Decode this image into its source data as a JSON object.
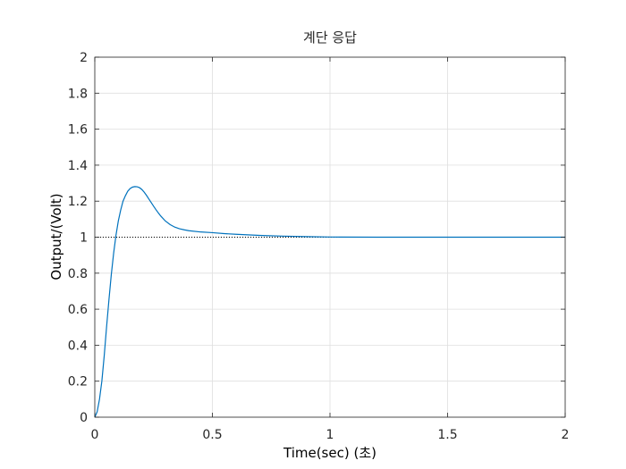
{
  "chart_data": {
    "type": "line",
    "title": "계단 응답",
    "xlabel": "Time(sec) (초)",
    "ylabel": "Output/(Volt)",
    "xlim": [
      0,
      2
    ],
    "ylim": [
      0,
      2
    ],
    "grid": true,
    "x_ticks": [
      "0",
      "0.5",
      "1",
      "1.5",
      "2"
    ],
    "y_ticks": [
      "0",
      "0.2",
      "0.4",
      "0.6",
      "0.8",
      "1",
      "1.2",
      "1.4",
      "1.6",
      "1.8",
      "2"
    ],
    "reference_line": {
      "y": 1,
      "style": "dotted",
      "color": "#000000"
    },
    "series": [
      {
        "color": "#0072BD",
        "x": [
          0,
          0.01,
          0.02,
          0.03,
          0.04,
          0.05,
          0.06,
          0.07,
          0.08,
          0.09,
          0.1,
          0.11,
          0.12,
          0.13,
          0.14,
          0.15,
          0.16,
          0.17,
          0.18,
          0.19,
          0.2,
          0.21,
          0.22,
          0.23,
          0.24,
          0.25,
          0.26,
          0.27,
          0.28,
          0.3,
          0.32,
          0.34,
          0.36,
          0.38,
          0.4,
          0.45,
          0.5,
          0.55,
          0.6,
          0.7,
          0.8,
          0.9,
          1.0,
          1.2,
          1.4,
          1.6,
          1.8,
          2.0
        ],
        "y": [
          0,
          0.03,
          0.1,
          0.2,
          0.34,
          0.5,
          0.65,
          0.79,
          0.91,
          1.01,
          1.09,
          1.15,
          1.2,
          1.23,
          1.255,
          1.27,
          1.278,
          1.281,
          1.28,
          1.275,
          1.265,
          1.25,
          1.232,
          1.212,
          1.192,
          1.172,
          1.153,
          1.135,
          1.118,
          1.09,
          1.07,
          1.056,
          1.047,
          1.041,
          1.036,
          1.029,
          1.025,
          1.02,
          1.016,
          1.01,
          1.006,
          1.003,
          1.001,
          1.0,
          1.0,
          1.0,
          1.0,
          1.0
        ]
      }
    ]
  }
}
